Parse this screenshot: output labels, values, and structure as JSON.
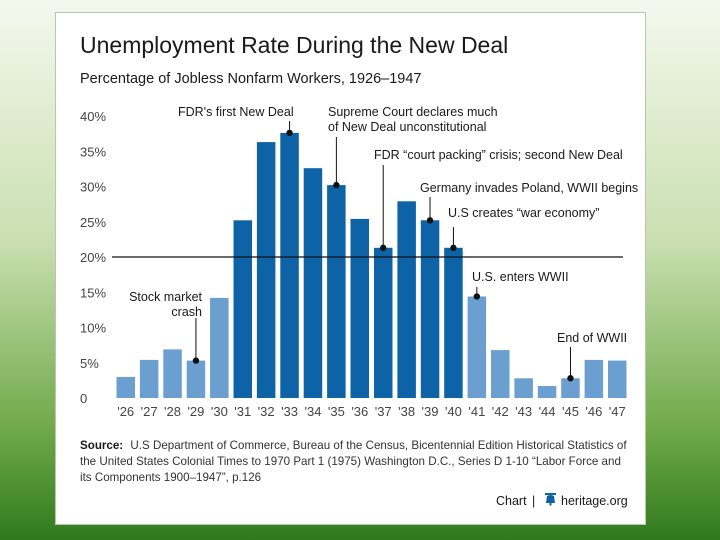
{
  "chart_data": {
    "type": "bar",
    "title": "Unemployment Rate During the New Deal",
    "subtitle": "Percentage of Jobless Nonfarm Workers, 1926–1947",
    "categories": [
      "'26",
      "'27",
      "'28",
      "'29",
      "'30",
      "'31",
      "'32",
      "'33",
      "'34",
      "'35",
      "'36",
      "'37",
      "'38",
      "'39",
      "'40",
      "'41",
      "'42",
      "'43",
      "'44",
      "'45",
      "'46",
      "'47"
    ],
    "values": [
      3.0,
      5.4,
      6.9,
      5.3,
      14.2,
      25.2,
      36.3,
      37.6,
      32.6,
      30.2,
      25.4,
      21.3,
      27.9,
      25.2,
      21.3,
      14.4,
      6.8,
      2.8,
      1.7,
      2.8,
      5.4,
      5.3
    ],
    "ylim": [
      0,
      40
    ],
    "yticks": [
      0,
      5,
      10,
      15,
      20,
      25,
      30,
      35,
      40
    ],
    "ytick_labels": [
      "0",
      "5%",
      "10%",
      "15%",
      "20%",
      "25%",
      "30%",
      "35%",
      "40%"
    ],
    "reference_line": 20,
    "colors": {
      "below_reference": "#6a9fcf",
      "above_reference": "#0d63a5",
      "reference_line": "#111111"
    },
    "annotations": [
      {
        "lines": [
          "FDR's first New Deal"
        ],
        "category": "'33",
        "value": 37.6
      },
      {
        "lines": [
          "Supreme Court declares much",
          "of New Deal unconstitutional"
        ],
        "category": "'35",
        "value": 30.2
      },
      {
        "lines": [
          "FDR “court packing” crisis; second New Deal"
        ],
        "category": "'37",
        "value": 21.3
      },
      {
        "lines": [
          "Germany invades Poland, WWII begins"
        ],
        "category": "'39",
        "value": 25.2
      },
      {
        "lines": [
          "U.S creates “war economy”"
        ],
        "category": "'40",
        "value": 21.3
      },
      {
        "lines": [
          "U.S. enters WWII"
        ],
        "category": "'41",
        "value": 14.4
      },
      {
        "lines": [
          "Stock market",
          "crash"
        ],
        "category": "'29",
        "value": 5.3
      },
      {
        "lines": [
          "End of WWII"
        ],
        "category": "'45",
        "value": 2.8
      }
    ]
  },
  "source": {
    "label": "Source:",
    "lines": [
      "U.S Department of Commerce, Bureau of the Census, Bicentennial Edition Historical Statistics of",
      "the United States Colonial Times to 1970 Part 1 (1975) Washington D.C., Series D 1-10 “Labor Force and",
      "its Components 1900–1947”, p.126"
    ]
  },
  "footer": {
    "chart_label": "Chart",
    "separator": "|",
    "site": "heritage.org"
  }
}
